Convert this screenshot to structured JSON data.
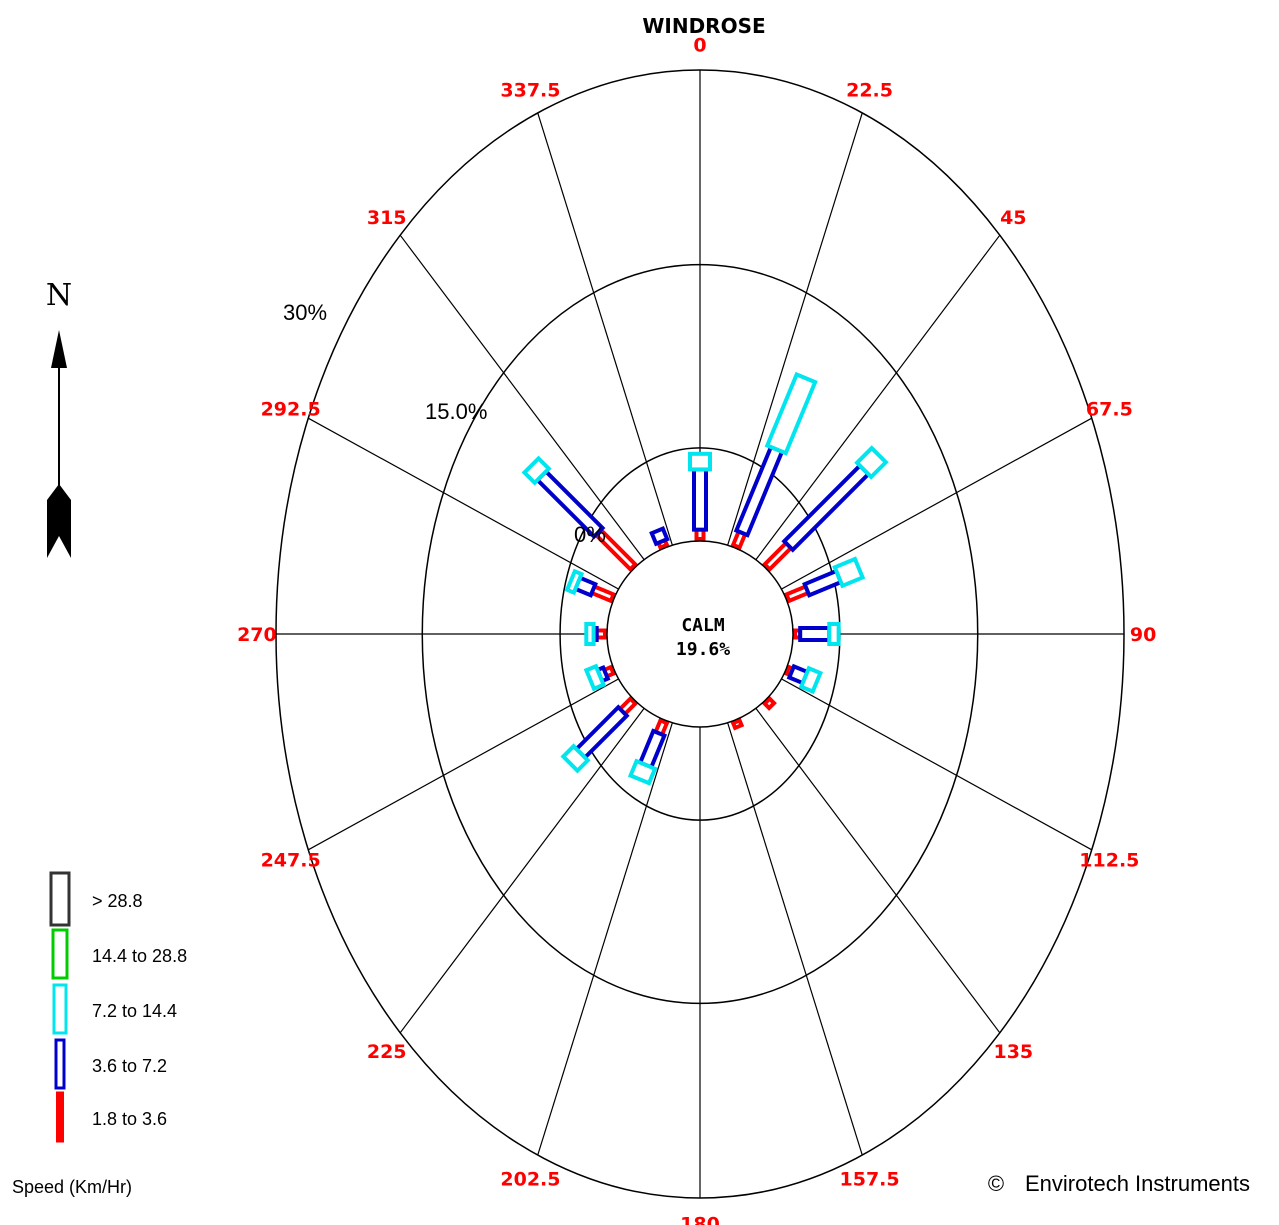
{
  "chart_data": {
    "type": "windrose",
    "title": "WINDROSE",
    "calm": {
      "label": "CALM",
      "value": "19.6%"
    },
    "ring_labels": [
      "0%",
      "15.0%",
      "30%"
    ],
    "ring_max": 30,
    "directions": [
      "0",
      "22.5",
      "45",
      "67.5",
      "90",
      "112.5",
      "135",
      "157.5",
      "180",
      "202.5",
      "225",
      "247.5",
      "270",
      "292.5",
      "315",
      "337.5"
    ],
    "speed_bins": [
      {
        "label": "1.8 to 3.6",
        "color": "#ff0000"
      },
      {
        "label": "3.6 to 7.2",
        "color": "#0000cc"
      },
      {
        "label": "7.2 to 14.4",
        "color": "#00e5ee"
      },
      {
        "label": "14.4 to 28.8",
        "color": "#00cc00"
      },
      {
        "label": "> 28.8",
        "color": "#333333"
      }
    ],
    "series": [
      {
        "direction": 0,
        "segments": [
          0.9,
          5.8,
          1.5,
          0,
          0
        ]
      },
      {
        "direction": 22.5,
        "segments": [
          1.4,
          8.7,
          7.4,
          0,
          0
        ]
      },
      {
        "direction": 45,
        "segments": [
          2.9,
          10.3,
          2.0,
          0,
          0
        ]
      },
      {
        "direction": 67.5,
        "segments": [
          2.0,
          3.3,
          2.1,
          0,
          0
        ]
      },
      {
        "direction": 90,
        "segments": [
          0.5,
          2.8,
          0.9,
          0,
          0
        ]
      },
      {
        "direction": 112.5,
        "segments": [
          0.4,
          1.4,
          1.2,
          0,
          0
        ]
      },
      {
        "direction": 135,
        "segments": [
          0.6,
          0,
          0,
          0,
          0
        ]
      },
      {
        "direction": 157.5,
        "segments": [
          0.5,
          0,
          0,
          0,
          0
        ]
      },
      {
        "direction": 180,
        "segments": [
          0,
          0,
          0,
          0,
          0
        ]
      },
      {
        "direction": 202.5,
        "segments": [
          1.2,
          3.3,
          1.5,
          0,
          0
        ]
      },
      {
        "direction": 225,
        "segments": [
          1.4,
          5.7,
          1.4,
          0,
          0
        ]
      },
      {
        "direction": 247.5,
        "segments": [
          0.7,
          0.6,
          1.0,
          0,
          0
        ]
      },
      {
        "direction": 270,
        "segments": [
          0.8,
          0.3,
          0.7,
          0,
          0
        ]
      },
      {
        "direction": 292.5,
        "segments": [
          2.0,
          1.6,
          0.7,
          0,
          0
        ]
      },
      {
        "direction": 315,
        "segments": [
          4.7,
          7.7,
          1.4,
          0,
          0
        ]
      },
      {
        "direction": 337.5,
        "segments": [
          0.5,
          1.1,
          0,
          0,
          0
        ]
      }
    ]
  },
  "legend": {
    "caption": "Speed (Km/Hr)"
  },
  "compass": {
    "label": "N"
  },
  "footer": {
    "copyright_symbol": "©",
    "text": "Envirotech Instruments"
  }
}
